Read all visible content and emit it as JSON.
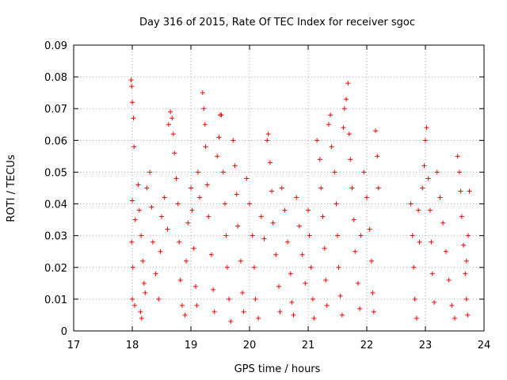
{
  "chart_data": {
    "type": "scatter",
    "title": "Day 316 of 2015, Rate Of TEC Index for receiver sgoc",
    "xlabel": "GPS time / hours",
    "ylabel": "ROTI / TECUs",
    "xlim": [
      17,
      24
    ],
    "ylim": [
      0,
      0.09
    ],
    "x_ticks": [
      "17",
      "18",
      "19",
      "20",
      "21",
      "22",
      "23",
      "24"
    ],
    "y_ticks": [
      "0",
      "0.01",
      "0.02",
      "0.03",
      "0.04",
      "0.05",
      "0.06",
      "0.07",
      "0.08",
      "0.09"
    ],
    "grid": true,
    "marker": "+",
    "color": "#ff0000",
    "series": [
      {
        "name": "ROTI",
        "points": [
          [
            17.98,
            0.079
          ],
          [
            17.99,
            0.077
          ],
          [
            18.0,
            0.072
          ],
          [
            18.02,
            0.067
          ],
          [
            18.03,
            0.058
          ],
          [
            18.0,
            0.041
          ],
          [
            18.05,
            0.035
          ],
          [
            17.99,
            0.028
          ],
          [
            18.01,
            0.02
          ],
          [
            18.0,
            0.01
          ],
          [
            18.04,
            0.008
          ],
          [
            18.1,
            0.046
          ],
          [
            18.12,
            0.038
          ],
          [
            18.15,
            0.03
          ],
          [
            18.18,
            0.022
          ],
          [
            18.2,
            0.015
          ],
          [
            18.14,
            0.006
          ],
          [
            18.16,
            0.004
          ],
          [
            18.22,
            0.012
          ],
          [
            18.25,
            0.045
          ],
          [
            18.3,
            0.05
          ],
          [
            18.33,
            0.039
          ],
          [
            18.35,
            0.028
          ],
          [
            18.4,
            0.018
          ],
          [
            18.45,
            0.01
          ],
          [
            18.48,
            0.025
          ],
          [
            18.5,
            0.036
          ],
          [
            18.55,
            0.042
          ],
          [
            18.6,
            0.032
          ],
          [
            18.62,
            0.065
          ],
          [
            18.65,
            0.069
          ],
          [
            18.68,
            0.067
          ],
          [
            18.7,
            0.062
          ],
          [
            18.72,
            0.056
          ],
          [
            18.75,
            0.048
          ],
          [
            18.78,
            0.04
          ],
          [
            18.8,
            0.028
          ],
          [
            18.82,
            0.016
          ],
          [
            18.85,
            0.008
          ],
          [
            18.9,
            0.005
          ],
          [
            18.92,
            0.022
          ],
          [
            18.95,
            0.034
          ],
          [
            19.0,
            0.045
          ],
          [
            19.02,
            0.038
          ],
          [
            19.05,
            0.026
          ],
          [
            19.08,
            0.014
          ],
          [
            19.1,
            0.008
          ],
          [
            19.12,
            0.05
          ],
          [
            19.15,
            0.042
          ],
          [
            19.2,
            0.075
          ],
          [
            19.22,
            0.07
          ],
          [
            19.24,
            0.065
          ],
          [
            19.25,
            0.058
          ],
          [
            19.28,
            0.046
          ],
          [
            19.3,
            0.036
          ],
          [
            19.35,
            0.024
          ],
          [
            19.38,
            0.013
          ],
          [
            19.4,
            0.006
          ],
          [
            19.45,
            0.055
          ],
          [
            19.48,
            0.061
          ],
          [
            19.5,
            0.068
          ],
          [
            19.52,
            0.068
          ],
          [
            19.55,
            0.05
          ],
          [
            19.58,
            0.04
          ],
          [
            19.6,
            0.03
          ],
          [
            19.62,
            0.02
          ],
          [
            19.65,
            0.01
          ],
          [
            19.68,
            0.003
          ],
          [
            19.72,
            0.06
          ],
          [
            19.75,
            0.052
          ],
          [
            19.78,
            0.043
          ],
          [
            19.8,
            0.033
          ],
          [
            19.85,
            0.022
          ],
          [
            19.88,
            0.012
          ],
          [
            19.9,
            0.006
          ],
          [
            19.95,
            0.048
          ],
          [
            20.0,
            0.04
          ],
          [
            20.05,
            0.03
          ],
          [
            20.08,
            0.02
          ],
          [
            20.1,
            0.01
          ],
          [
            20.15,
            0.004
          ],
          [
            20.2,
            0.036
          ],
          [
            20.25,
            0.029
          ],
          [
            20.3,
            0.06
          ],
          [
            20.32,
            0.062
          ],
          [
            20.35,
            0.053
          ],
          [
            20.38,
            0.044
          ],
          [
            20.4,
            0.034
          ],
          [
            20.45,
            0.024
          ],
          [
            20.5,
            0.014
          ],
          [
            20.52,
            0.006
          ],
          [
            20.55,
            0.045
          ],
          [
            20.6,
            0.038
          ],
          [
            20.65,
            0.028
          ],
          [
            20.7,
            0.018
          ],
          [
            20.72,
            0.009
          ],
          [
            20.75,
            0.005
          ],
          [
            20.8,
            0.042
          ],
          [
            20.85,
            0.033
          ],
          [
            20.9,
            0.024
          ],
          [
            20.95,
            0.015
          ],
          [
            21.0,
            0.038
          ],
          [
            21.02,
            0.03
          ],
          [
            21.05,
            0.02
          ],
          [
            21.08,
            0.01
          ],
          [
            21.1,
            0.004
          ],
          [
            21.15,
            0.06
          ],
          [
            21.2,
            0.054
          ],
          [
            21.22,
            0.045
          ],
          [
            21.25,
            0.036
          ],
          [
            21.28,
            0.026
          ],
          [
            21.3,
            0.016
          ],
          [
            21.32,
            0.008
          ],
          [
            21.35,
            0.065
          ],
          [
            21.38,
            0.068
          ],
          [
            21.4,
            0.058
          ],
          [
            21.45,
            0.05
          ],
          [
            21.48,
            0.04
          ],
          [
            21.5,
            0.03
          ],
          [
            21.52,
            0.02
          ],
          [
            21.55,
            0.011
          ],
          [
            21.58,
            0.005
          ],
          [
            21.6,
            0.064
          ],
          [
            21.62,
            0.07
          ],
          [
            21.65,
            0.073
          ],
          [
            21.68,
            0.078
          ],
          [
            21.7,
            0.062
          ],
          [
            21.72,
            0.054
          ],
          [
            21.75,
            0.045
          ],
          [
            21.78,
            0.035
          ],
          [
            21.8,
            0.025
          ],
          [
            21.85,
            0.015
          ],
          [
            21.88,
            0.007
          ],
          [
            21.9,
            0.03
          ],
          [
            21.95,
            0.05
          ],
          [
            22.0,
            0.042
          ],
          [
            22.05,
            0.032
          ],
          [
            22.08,
            0.022
          ],
          [
            22.1,
            0.012
          ],
          [
            22.12,
            0.006
          ],
          [
            22.15,
            0.063
          ],
          [
            22.18,
            0.055
          ],
          [
            22.2,
            0.045
          ],
          [
            22.75,
            0.04
          ],
          [
            22.78,
            0.03
          ],
          [
            22.8,
            0.02
          ],
          [
            22.82,
            0.01
          ],
          [
            22.85,
            0.004
          ],
          [
            22.88,
            0.038
          ],
          [
            22.9,
            0.028
          ],
          [
            22.95,
            0.045
          ],
          [
            22.98,
            0.052
          ],
          [
            23.0,
            0.06
          ],
          [
            23.02,
            0.064
          ],
          [
            23.05,
            0.048
          ],
          [
            23.08,
            0.038
          ],
          [
            23.1,
            0.028
          ],
          [
            23.12,
            0.018
          ],
          [
            23.15,
            0.009
          ],
          [
            23.2,
            0.05
          ],
          [
            23.25,
            0.042
          ],
          [
            23.3,
            0.034
          ],
          [
            23.35,
            0.025
          ],
          [
            23.4,
            0.016
          ],
          [
            23.45,
            0.008
          ],
          [
            23.5,
            0.004
          ],
          [
            23.55,
            0.055
          ],
          [
            23.58,
            0.05
          ],
          [
            23.6,
            0.044
          ],
          [
            23.62,
            0.036
          ],
          [
            23.65,
            0.027
          ],
          [
            23.68,
            0.018
          ],
          [
            23.7,
            0.01
          ],
          [
            23.72,
            0.005
          ],
          [
            23.75,
            0.044
          ],
          [
            23.73,
            0.03
          ],
          [
            23.7,
            0.022
          ]
        ]
      }
    ]
  }
}
